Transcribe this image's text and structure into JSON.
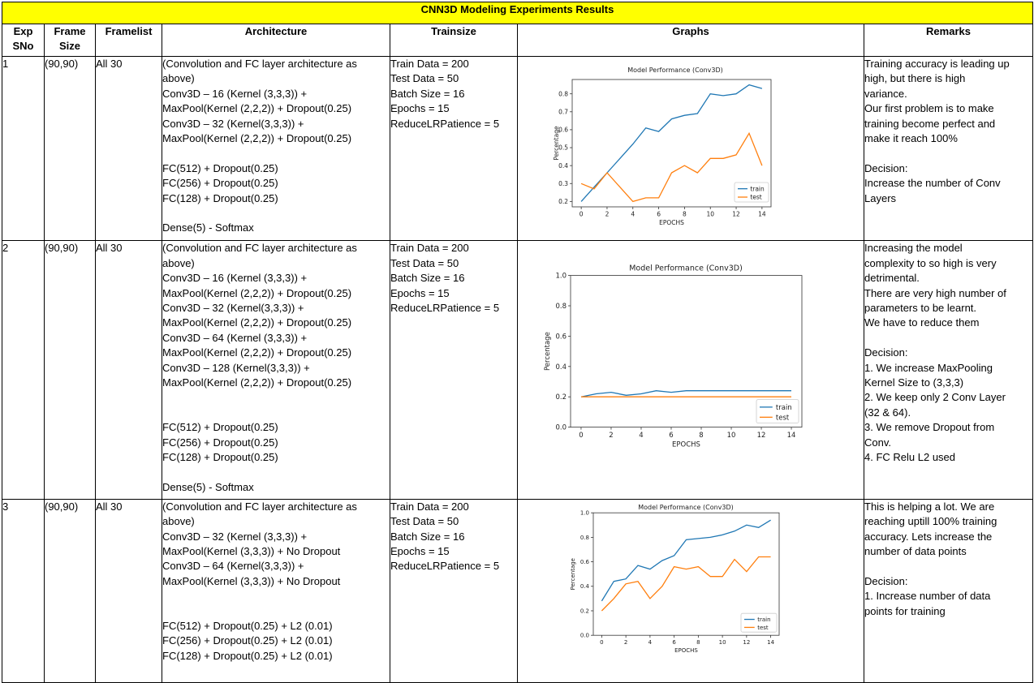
{
  "title": "CNN3D Modeling Experiments Results",
  "headers": [
    "Exp SNo",
    "Frame Size",
    "Framelist",
    "Architecture",
    "Trainsize",
    "Graphs",
    "Remarks"
  ],
  "header_lines": {
    "exp": [
      "Exp",
      "SNo"
    ],
    "frame": [
      "Frame",
      "Size"
    ]
  },
  "rows": [
    {
      "exp": "1",
      "frame_size": "(90,90)",
      "framelist": "All 30",
      "architecture": [
        "(Convolution and FC layer architecture as",
        "above)",
        "Conv3D – 16 (Kernel (3,3,3)) +",
        "MaxPool(Kernel (2,2,2)) + Dropout(0.25)",
        "Conv3D – 32 (Kernel(3,3,3)) +",
        "MaxPool(Kernel (2,2,2)) + Dropout(0.25)",
        "",
        "FC(512) + Dropout(0.25)",
        "FC(256) + Dropout(0.25)",
        "FC(128) + Dropout(0.25)",
        "",
        "Dense(5) - Softmax"
      ],
      "trainsize": [
        "Train Data = 200",
        "Test Data = 50",
        "Batch Size = 16",
        "Epochs = 15",
        "ReduceLRPatience = 5"
      ],
      "remarks": [
        "Training accuracy is leading up",
        "high, but there is high",
        "variance.",
        "Our first problem is to make",
        "training become perfect and",
        "make it reach 100%",
        "",
        "Decision:",
        "Increase the number of Conv",
        "Layers"
      ]
    },
    {
      "exp": "2",
      "frame_size": "(90,90)",
      "framelist": "All 30",
      "architecture": [
        "(Convolution and FC layer architecture as",
        "above)",
        "Conv3D – 16 (Kernel (3,3,3)) +",
        "MaxPool(Kernel (2,2,2)) + Dropout(0.25)",
        "Conv3D – 32 (Kernel(3,3,3)) +",
        "MaxPool(Kernel (2,2,2)) + Dropout(0.25)",
        "Conv3D – 64 (Kernel (3,3,3)) +",
        "MaxPool(Kernel (2,2,2)) + Dropout(0.25)",
        "Conv3D – 128 (Kernel(3,3,3)) +",
        "MaxPool(Kernel (2,2,2)) + Dropout(0.25)",
        "",
        "",
        "FC(512) + Dropout(0.25)",
        "FC(256) + Dropout(0.25)",
        "FC(128) + Dropout(0.25)",
        "",
        "Dense(5) - Softmax"
      ],
      "trainsize": [
        "Train Data = 200",
        "Test Data = 50",
        "Batch Size = 16",
        "Epochs = 15",
        "ReduceLRPatience = 5"
      ],
      "remarks": [
        "Increasing the model",
        "complexity to so high is very",
        "detrimental.",
        "There are very high number of",
        "parameters to be learnt.",
        "We have to reduce them",
        "",
        "Decision:",
        "1. We increase MaxPooling",
        "Kernel Size to (3,3,3)",
        "2. We keep only 2 Conv Layer",
        "(32 & 64).",
        "3. We remove Dropout from",
        "Conv.",
        "4. FC Relu L2 used"
      ]
    },
    {
      "exp": "3",
      "frame_size": "(90,90)",
      "framelist": "All 30",
      "architecture": [
        "(Convolution and FC layer architecture as",
        "above)",
        "Conv3D – 32 (Kernel (3,3,3)) +",
        "MaxPool(Kernel (3,3,3)) + No Dropout",
        "Conv3D – 64 (Kernel(3,3,3)) +",
        "MaxPool(Kernel (3,3,3)) + No Dropout",
        "",
        "",
        "FC(512) + Dropout(0.25) + L2 (0.01)",
        "FC(256) + Dropout(0.25) + L2 (0.01)",
        "FC(128) + Dropout(0.25) + L2 (0.01)"
      ],
      "trainsize": [
        "Train Data = 200",
        "Test Data = 50",
        "Batch Size = 16",
        "Epochs = 15",
        "ReduceLRPatience = 5"
      ],
      "remarks": [
        "This is helping a lot. We are",
        "reaching uptill 100% training",
        "accuracy. Lets increase the",
        "number of data points",
        "",
        "Decision:",
        "1. Increase number of data",
        "points for training"
      ]
    }
  ],
  "colors": {
    "title_bg": "#ffff00",
    "train": "#1f77b4",
    "test": "#ff7f0e"
  },
  "chart_data": [
    {
      "type": "line",
      "title": "Model Performance (Conv3D)",
      "xlabel": "EPOCHS",
      "ylabel": "Percentage",
      "x": [
        0,
        1,
        2,
        3,
        4,
        5,
        6,
        7,
        8,
        9,
        10,
        11,
        12,
        13,
        14
      ],
      "xticks": [
        "0",
        "2",
        "4",
        "6",
        "8",
        "10",
        "12",
        "14"
      ],
      "yticks": [
        "0.2",
        "0.3",
        "0.4",
        "0.5",
        "0.6",
        "0.7",
        "0.8"
      ],
      "xlim": [
        -0.7,
        14.7
      ],
      "ylim": [
        0.17,
        0.88
      ],
      "legend": "bottom-right",
      "series": [
        {
          "name": "train",
          "values": [
            0.2,
            0.28,
            0.36,
            0.44,
            0.52,
            0.61,
            0.59,
            0.66,
            0.68,
            0.69,
            0.8,
            0.79,
            0.8,
            0.85,
            0.83
          ]
        },
        {
          "name": "test",
          "values": [
            0.3,
            0.27,
            0.36,
            0.28,
            0.2,
            0.22,
            0.22,
            0.36,
            0.4,
            0.36,
            0.44,
            0.44,
            0.46,
            0.58,
            0.4
          ]
        }
      ]
    },
    {
      "type": "line",
      "title": "Model Performance (Conv3D)",
      "xlabel": "EPOCHS",
      "ylabel": "Percentage",
      "x": [
        0,
        1,
        2,
        3,
        4,
        5,
        6,
        7,
        8,
        9,
        10,
        11,
        12,
        13,
        14
      ],
      "xticks": [
        "0",
        "2",
        "4",
        "6",
        "8",
        "10",
        "12",
        "14"
      ],
      "yticks": [
        "0.0",
        "0.2",
        "0.4",
        "0.6",
        "0.8",
        "1.0"
      ],
      "xlim": [
        -0.7,
        14.7
      ],
      "ylim": [
        0.0,
        1.0
      ],
      "legend": "bottom-right",
      "series": [
        {
          "name": "train",
          "values": [
            0.2,
            0.22,
            0.23,
            0.21,
            0.22,
            0.24,
            0.23,
            0.24,
            0.24,
            0.24,
            0.24,
            0.24,
            0.24,
            0.24,
            0.24
          ]
        },
        {
          "name": "test",
          "values": [
            0.2,
            0.2,
            0.2,
            0.2,
            0.2,
            0.2,
            0.2,
            0.2,
            0.2,
            0.2,
            0.2,
            0.2,
            0.2,
            0.2,
            0.2
          ]
        }
      ]
    },
    {
      "type": "line",
      "title": "Model Performance (Conv3D)",
      "xlabel": "EPOCHS",
      "ylabel": "Percentage",
      "x": [
        0,
        1,
        2,
        3,
        4,
        5,
        6,
        7,
        8,
        9,
        10,
        11,
        12,
        13,
        14
      ],
      "xticks": [
        "0",
        "2",
        "4",
        "6",
        "8",
        "10",
        "12",
        "14"
      ],
      "yticks": [
        "0.0",
        "0.2",
        "0.4",
        "0.6",
        "0.8",
        "1.0"
      ],
      "xlim": [
        -0.7,
        14.7
      ],
      "ylim": [
        0.0,
        1.0
      ],
      "legend": "bottom-right",
      "series": [
        {
          "name": "train",
          "values": [
            0.28,
            0.44,
            0.46,
            0.57,
            0.54,
            0.61,
            0.65,
            0.78,
            0.79,
            0.8,
            0.82,
            0.85,
            0.9,
            0.88,
            0.94
          ]
        },
        {
          "name": "test",
          "values": [
            0.2,
            0.3,
            0.42,
            0.44,
            0.3,
            0.4,
            0.56,
            0.54,
            0.56,
            0.48,
            0.48,
            0.62,
            0.52,
            0.64,
            0.64
          ]
        }
      ]
    }
  ]
}
